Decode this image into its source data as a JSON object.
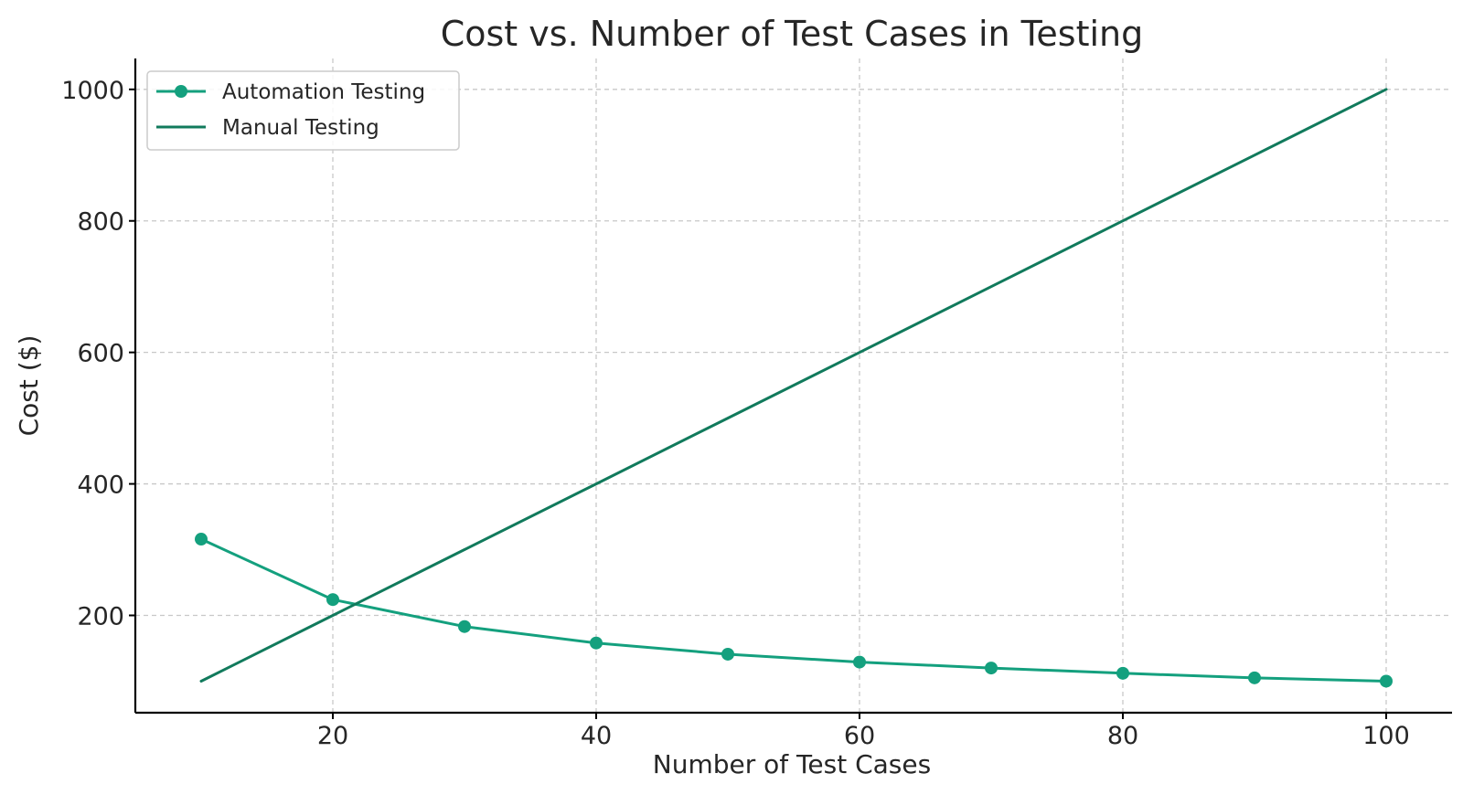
{
  "chart_data": {
    "type": "line",
    "title": "Cost vs. Number of Test Cases in Testing",
    "xlabel": "Number of Test Cases",
    "ylabel": "Cost ($)",
    "xlim": [
      5,
      105
    ],
    "ylim": [
      52,
      1047
    ],
    "xticks": [
      20,
      40,
      60,
      80,
      100
    ],
    "yticks": [
      200,
      400,
      600,
      800,
      1000
    ],
    "grid": true,
    "legend_position": "top-left",
    "series": [
      {
        "name": "Automation Testing",
        "color": "#14a07e",
        "marker": "circle",
        "x": [
          10,
          20,
          30,
          40,
          50,
          60,
          70,
          80,
          90,
          100
        ],
        "y": [
          316,
          224,
          183,
          158,
          141,
          129,
          120,
          112,
          105,
          100
        ]
      },
      {
        "name": "Manual Testing",
        "color": "#117a5c",
        "marker": "none",
        "x": [
          10,
          20,
          30,
          40,
          50,
          60,
          70,
          80,
          90,
          100
        ],
        "y": [
          100,
          200,
          300,
          400,
          500,
          600,
          700,
          800,
          900,
          1000
        ]
      }
    ]
  }
}
